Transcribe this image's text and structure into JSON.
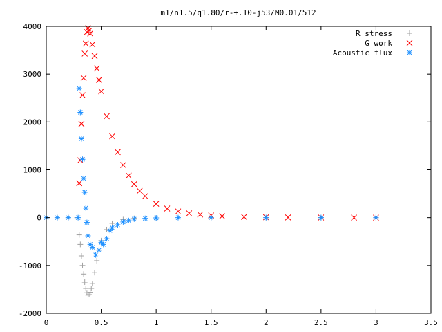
{
  "chart_data": {
    "type": "scatter",
    "title": "m1/n1.5/q1.80/r-+.10-j53/M0.01/512",
    "xlabel": "",
    "ylabel": "",
    "xlim": [
      0,
      3.5
    ],
    "ylim": [
      -2000,
      4000
    ],
    "x_ticks": [
      "0",
      "0.5",
      "1",
      "1.5",
      "2",
      "2.5",
      "3",
      "3.5"
    ],
    "y_ticks": [
      "-2000",
      "-1000",
      "0",
      "1000",
      "2000",
      "3000",
      "4000"
    ],
    "grid": false,
    "legend_position": "top-right",
    "series": [
      {
        "name": "R stress",
        "marker": "plus",
        "color": "#a0a0a0",
        "x": [
          0.0,
          0.1,
          0.2,
          0.28,
          0.3,
          0.31,
          0.32,
          0.33,
          0.34,
          0.35,
          0.36,
          0.37,
          0.38,
          0.39,
          0.4,
          0.41,
          0.42,
          0.44,
          0.46,
          0.48,
          0.5,
          0.55,
          0.6,
          0.7,
          0.8,
          1.0,
          1.5,
          2.0,
          2.5,
          3.0
        ],
        "y": [
          0,
          0,
          0,
          0,
          -360,
          -560,
          -800,
          -1000,
          -1180,
          -1350,
          -1480,
          -1570,
          -1620,
          -1610,
          -1560,
          -1480,
          -1380,
          -1150,
          -900,
          -680,
          -480,
          -250,
          -120,
          -40,
          -15,
          -5,
          0,
          0,
          0,
          0
        ]
      },
      {
        "name": "G work",
        "marker": "cross",
        "color": "#ff0000",
        "x": [
          0.3,
          0.31,
          0.32,
          0.33,
          0.34,
          0.35,
          0.36,
          0.37,
          0.38,
          0.39,
          0.4,
          0.42,
          0.44,
          0.46,
          0.48,
          0.5,
          0.55,
          0.6,
          0.65,
          0.7,
          0.75,
          0.8,
          0.85,
          0.9,
          1.0,
          1.1,
          1.2,
          1.3,
          1.4,
          1.5,
          1.6,
          1.8,
          2.0,
          2.2,
          2.5,
          2.8,
          3.0
        ],
        "y": [
          720,
          1200,
          1960,
          2560,
          2920,
          3430,
          3640,
          3880,
          3960,
          3910,
          3850,
          3620,
          3380,
          3120,
          2880,
          2640,
          2120,
          1700,
          1370,
          1100,
          880,
          700,
          560,
          450,
          290,
          190,
          130,
          90,
          65,
          45,
          30,
          15,
          8,
          4,
          2,
          1,
          0
        ]
      },
      {
        "name": "Acoustic flux",
        "marker": "star",
        "color": "#1e90ff",
        "x": [
          0.0,
          0.1,
          0.2,
          0.29,
          0.3,
          0.31,
          0.32,
          0.33,
          0.34,
          0.35,
          0.36,
          0.37,
          0.38,
          0.4,
          0.42,
          0.45,
          0.48,
          0.5,
          0.52,
          0.55,
          0.58,
          0.6,
          0.65,
          0.7,
          0.75,
          0.8,
          0.9,
          1.0,
          1.2,
          1.5,
          2.0,
          2.5,
          3.0
        ],
        "y": [
          0,
          0,
          0,
          0,
          2700,
          2200,
          1650,
          1220,
          820,
          530,
          200,
          -100,
          -380,
          -560,
          -620,
          -780,
          -680,
          -520,
          -560,
          -440,
          -270,
          -210,
          -150,
          -90,
          -60,
          -30,
          -15,
          -5,
          0,
          0,
          0,
          0,
          0
        ]
      }
    ]
  }
}
